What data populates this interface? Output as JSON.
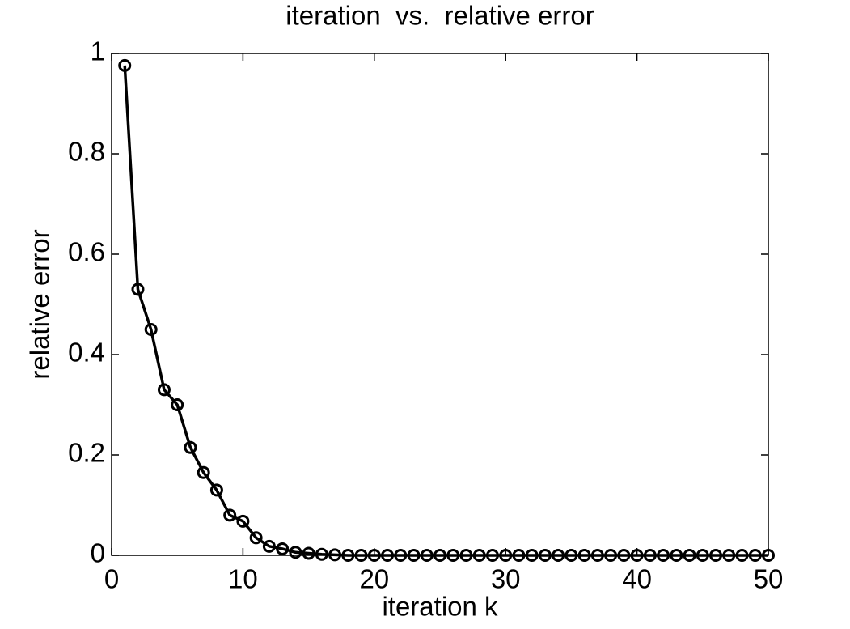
{
  "chart_data": {
    "type": "line",
    "title": "iteration  vs.  relative error",
    "xlabel": "iteration k",
    "ylabel": "relative error",
    "x": [
      1,
      2,
      3,
      4,
      5,
      6,
      7,
      8,
      9,
      10,
      11,
      12,
      13,
      14,
      15,
      16,
      17,
      18,
      19,
      20,
      21,
      22,
      23,
      24,
      25,
      26,
      27,
      28,
      29,
      30,
      31,
      32,
      33,
      34,
      35,
      36,
      37,
      38,
      39,
      40,
      41,
      42,
      43,
      44,
      45,
      46,
      47,
      48,
      49,
      50
    ],
    "series": [
      {
        "name": "relative error",
        "color": "#000000",
        "values": [
          0.976,
          0.53,
          0.45,
          0.33,
          0.3,
          0.215,
          0.165,
          0.13,
          0.08,
          0.068,
          0.035,
          0.018,
          0.013,
          0.006,
          0.004,
          0.002,
          0.001,
          0,
          0,
          0,
          0,
          0,
          0,
          0,
          0,
          0,
          0,
          0,
          0,
          0,
          0,
          0,
          0,
          0,
          0,
          0,
          0,
          0,
          0,
          0,
          0,
          0,
          0,
          0,
          0,
          0,
          0,
          0,
          0,
          0
        ]
      }
    ],
    "xlim": [
      0,
      50
    ],
    "xticks": [
      0,
      10,
      20,
      30,
      40,
      50
    ],
    "ylim": [
      0,
      1
    ],
    "yticks": [
      0,
      0.2,
      0.4,
      0.6,
      0.8,
      1
    ],
    "grid": false
  }
}
